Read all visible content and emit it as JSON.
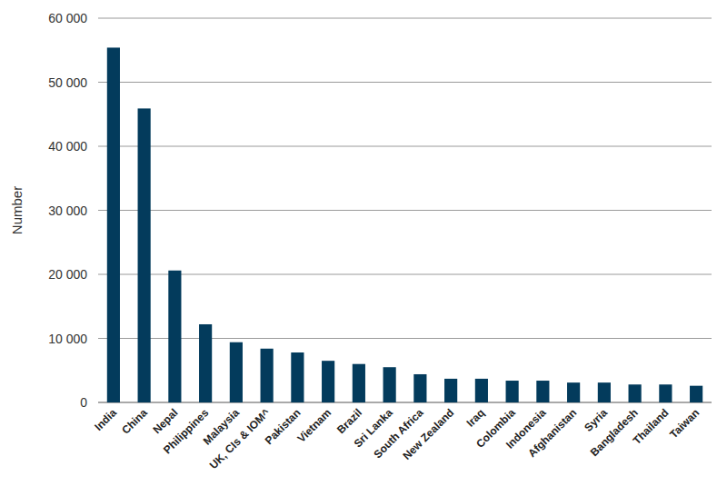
{
  "chart_data": {
    "type": "bar",
    "y_label": "Number",
    "categories": [
      "India",
      "China",
      "Nepal",
      "Philippines",
      "Malaysia",
      "UK, CIs & IOM^",
      "Pakistan",
      "Vietnam",
      "Brazil",
      "Sri Lanka",
      "South Africa",
      "New Zealand",
      "Iraq",
      "Colombia",
      "Indonesia",
      "Afghanistan",
      "Syria",
      "Bangladesh",
      "Thailand",
      "Taiwan"
    ],
    "values": [
      55400,
      45900,
      20600,
      12200,
      9400,
      8400,
      7800,
      6500,
      6000,
      5500,
      4400,
      3700,
      3700,
      3400,
      3400,
      3100,
      3100,
      2800,
      2800,
      2600
    ],
    "color": "#033b5c",
    "ylim": [
      0,
      60000
    ],
    "yticks": [
      0,
      {
        "value": 10000,
        "label": "10 000"
      },
      {
        "value": 20000,
        "label": "20 000"
      },
      {
        "value": 30000,
        "label": "30 000"
      },
      {
        "value": 40000,
        "label": "40 000"
      },
      {
        "value": 50000,
        "label": "50 000"
      },
      {
        "value": 60000,
        "label": "60 000"
      }
    ],
    "grid": true
  }
}
